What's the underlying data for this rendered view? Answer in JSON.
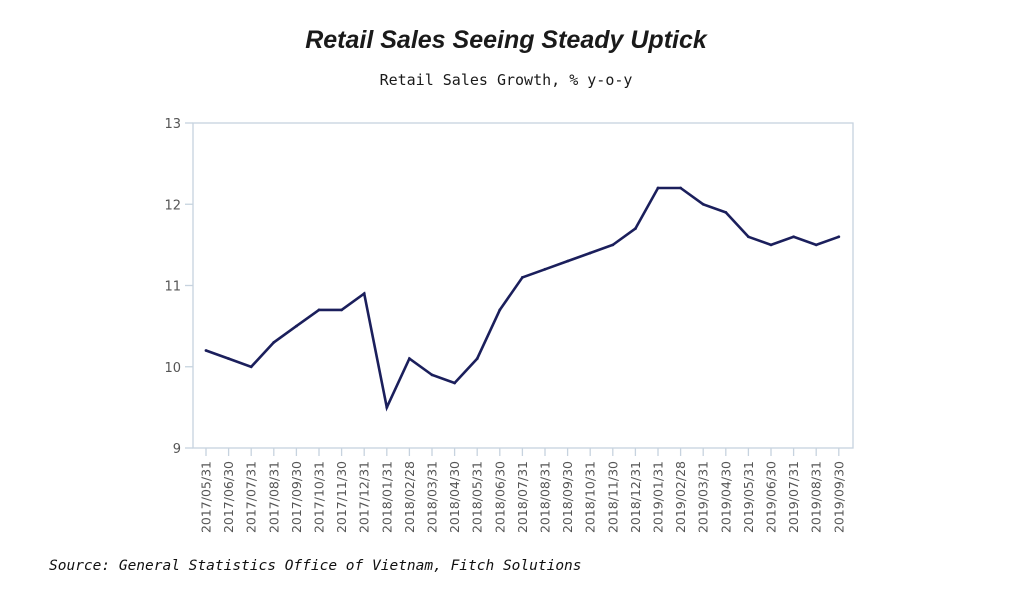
{
  "chart_data": {
    "type": "line",
    "title": "Retail Sales Seeing Steady Uptick",
    "subtitle": "Retail Sales Growth, % y-o-y",
    "source": "Source: General Statistics Office of Vietnam, Fitch Solutions",
    "ylim": [
      9,
      13
    ],
    "yticks": [
      9,
      10,
      11,
      12,
      13
    ],
    "grid": false,
    "x": [
      "2017/05/31",
      "2017/06/30",
      "2017/07/31",
      "2017/08/31",
      "2017/09/30",
      "2017/10/31",
      "2017/11/30",
      "2017/12/31",
      "2018/01/31",
      "2018/02/28",
      "2018/03/31",
      "2018/04/30",
      "2018/05/31",
      "2018/06/30",
      "2018/07/31",
      "2018/08/31",
      "2018/09/30",
      "2018/10/31",
      "2018/11/30",
      "2018/12/31",
      "2019/01/31",
      "2019/02/28",
      "2019/03/31",
      "2019/04/30",
      "2019/05/31",
      "2019/06/30",
      "2019/07/31",
      "2019/08/31",
      "2019/09/30"
    ],
    "series": [
      {
        "color": "#1b1f5c",
        "values": [
          10.2,
          10.1,
          10.0,
          10.3,
          10.5,
          10.7,
          10.7,
          10.9,
          9.5,
          10.1,
          9.9,
          9.8,
          10.1,
          10.7,
          11.1,
          11.2,
          11.3,
          11.4,
          11.5,
          11.7,
          12.2,
          12.2,
          12.0,
          11.9,
          11.6,
          11.5,
          11.6,
          11.5,
          11.6
        ]
      }
    ]
  },
  "colors": {
    "axis": "#c7d3df",
    "text": "#555555",
    "line": "#1b1f5c"
  }
}
